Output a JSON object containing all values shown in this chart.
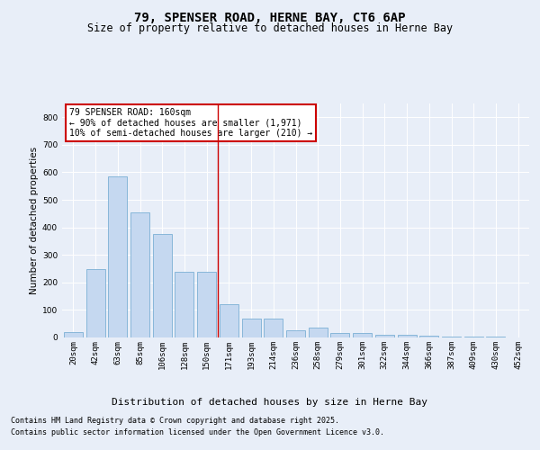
{
  "title": "79, SPENSER ROAD, HERNE BAY, CT6 6AP",
  "subtitle": "Size of property relative to detached houses in Herne Bay",
  "xlabel": "Distribution of detached houses by size in Herne Bay",
  "ylabel": "Number of detached properties",
  "categories": [
    "20sqm",
    "42sqm",
    "63sqm",
    "85sqm",
    "106sqm",
    "128sqm",
    "150sqm",
    "171sqm",
    "193sqm",
    "214sqm",
    "236sqm",
    "258sqm",
    "279sqm",
    "301sqm",
    "322sqm",
    "344sqm",
    "366sqm",
    "387sqm",
    "409sqm",
    "430sqm",
    "452sqm"
  ],
  "values": [
    20,
    248,
    585,
    455,
    375,
    240,
    240,
    120,
    68,
    68,
    25,
    35,
    15,
    15,
    10,
    10,
    5,
    4,
    2,
    2,
    1
  ],
  "bar_color": "#c5d8f0",
  "bar_edge_color": "#7bafd4",
  "vline_index": 7,
  "vline_color": "#cc0000",
  "annotation_title": "79 SPENSER ROAD: 160sqm",
  "annotation_line1": "← 90% of detached houses are smaller (1,971)",
  "annotation_line2": "10% of semi-detached houses are larger (210) →",
  "annotation_box_edge": "#cc0000",
  "ylim": [
    0,
    850
  ],
  "yticks": [
    0,
    100,
    200,
    300,
    400,
    500,
    600,
    700,
    800
  ],
  "background_color": "#e8eef8",
  "footer_line1": "Contains HM Land Registry data © Crown copyright and database right 2025.",
  "footer_line2": "Contains public sector information licensed under the Open Government Licence v3.0.",
  "title_fontsize": 10,
  "subtitle_fontsize": 8.5,
  "ylabel_fontsize": 7.5,
  "xlabel_fontsize": 8,
  "tick_fontsize": 6.5,
  "annotation_fontsize": 7,
  "footer_fontsize": 6
}
